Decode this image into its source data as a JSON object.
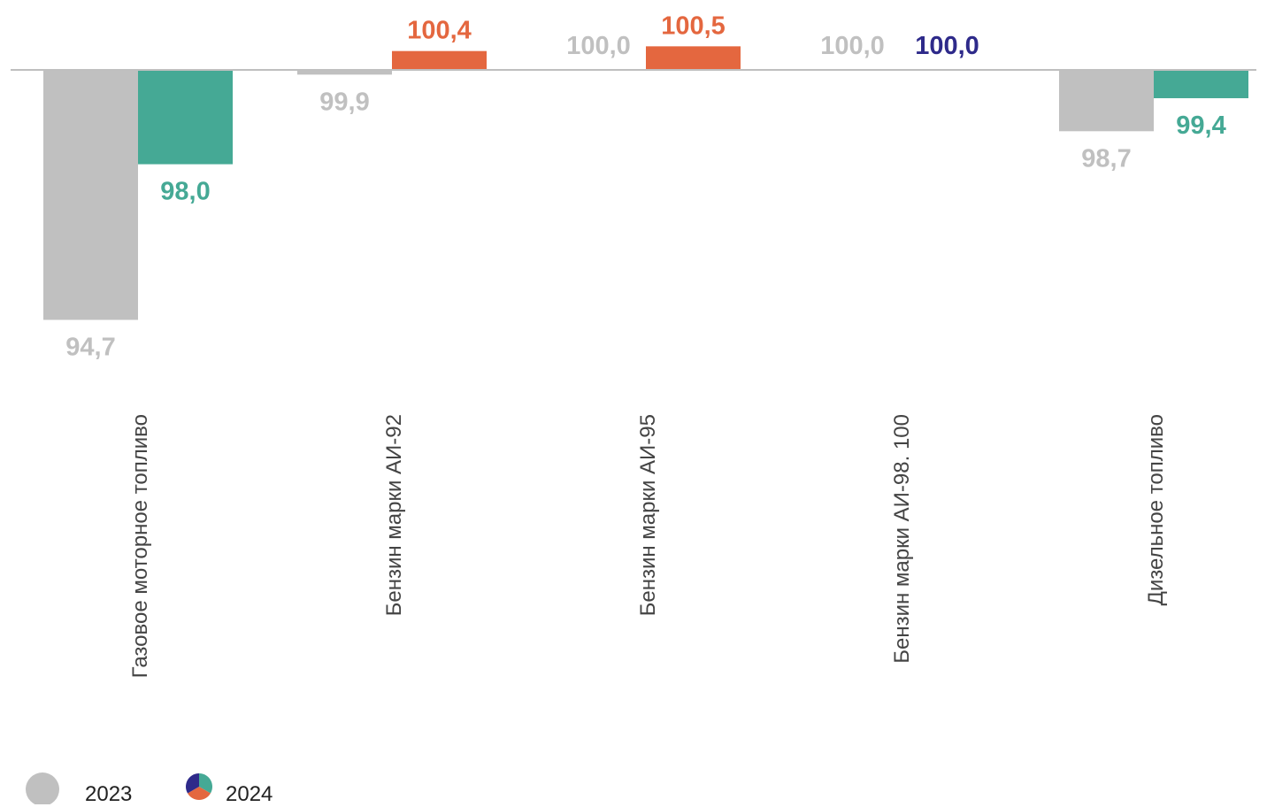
{
  "chart_data": {
    "type": "bar",
    "title": "",
    "xlabel": "",
    "ylabel": "",
    "baseline": 100,
    "grid": false,
    "legend_position": "bottom-left",
    "categories": [
      "Газовое моторное топливо",
      "Бензин марки АИ-92",
      "Бензин марки АИ-95",
      "Бензин марки АИ-98. 100",
      "Дизельное топливо"
    ],
    "series": [
      {
        "name": "2023",
        "values": [
          94.7,
          99.9,
          100.0,
          100.0,
          98.7
        ],
        "labels": [
          "94,7",
          "99,9",
          "100,0",
          "100,0",
          "98,7"
        ],
        "colors": [
          "#c0c0c0",
          "#c0c0c0",
          "#c0c0c0",
          "#c0c0c0",
          "#c0c0c0"
        ],
        "label_colors": [
          "#c0c0c0",
          "#c0c0c0",
          "#c0c0c0",
          "#c0c0c0",
          "#c0c0c0"
        ]
      },
      {
        "name": "2024",
        "values": [
          98.0,
          100.4,
          100.5,
          100.0,
          99.4
        ],
        "labels": [
          "98,0",
          "100,4",
          "100,5",
          "100,0",
          "99,4"
        ],
        "colors": [
          "#45a995",
          "#e4673f",
          "#e4673f",
          "#2e2a8a",
          "#45a995"
        ],
        "label_colors": [
          "#45a995",
          "#e4673f",
          "#e4673f",
          "#2e2a8a",
          "#45a995"
        ]
      }
    ]
  },
  "legend": {
    "items": [
      {
        "label": "2023",
        "swatch_color": "#c0c0c0"
      },
      {
        "label": "2024",
        "swatch_colors": [
          "#2e2a8a",
          "#45a995",
          "#e4673f"
        ]
      }
    ]
  }
}
